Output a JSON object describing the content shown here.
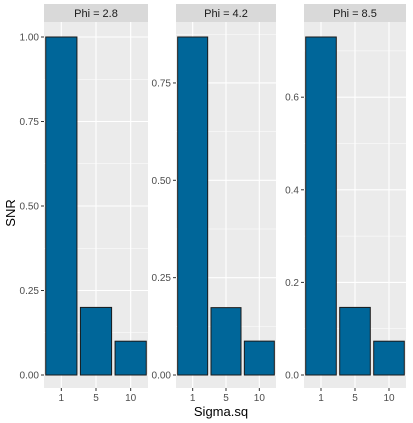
{
  "chart_data": {
    "type": "bar",
    "xlabel": "Sigma.sq",
    "ylabel": "SNR",
    "bar_color": "#006699",
    "facet_strip_color": "#d9d9d9",
    "panel_background": "#ebebeb",
    "categories": [
      "1",
      "5",
      "10"
    ],
    "facets": [
      {
        "label": "Phi = 2.8",
        "values": [
          1.0,
          0.2,
          0.1
        ],
        "ylim": [
          0,
          1.0
        ],
        "yticks": [
          0.0,
          0.25,
          0.5,
          0.75,
          1.0
        ],
        "ytick_labels": [
          "0.00",
          "0.25",
          "0.50",
          "0.75",
          "1.00"
        ]
      },
      {
        "label": "Phi = 4.2",
        "values": [
          0.868,
          0.173,
          0.087
        ],
        "ylim": [
          0,
          0.868
        ],
        "yticks": [
          0.0,
          0.25,
          0.5,
          0.75
        ],
        "ytick_labels": [
          "0.00",
          "0.25",
          "0.50",
          "0.75"
        ]
      },
      {
        "label": "Phi = 8.5",
        "values": [
          0.73,
          0.146,
          0.073
        ],
        "ylim": [
          0,
          0.73
        ],
        "yticks": [
          0.0,
          0.2,
          0.4,
          0.6
        ],
        "ytick_labels": [
          "0.0",
          "0.2",
          "0.4",
          "0.6"
        ]
      }
    ]
  }
}
